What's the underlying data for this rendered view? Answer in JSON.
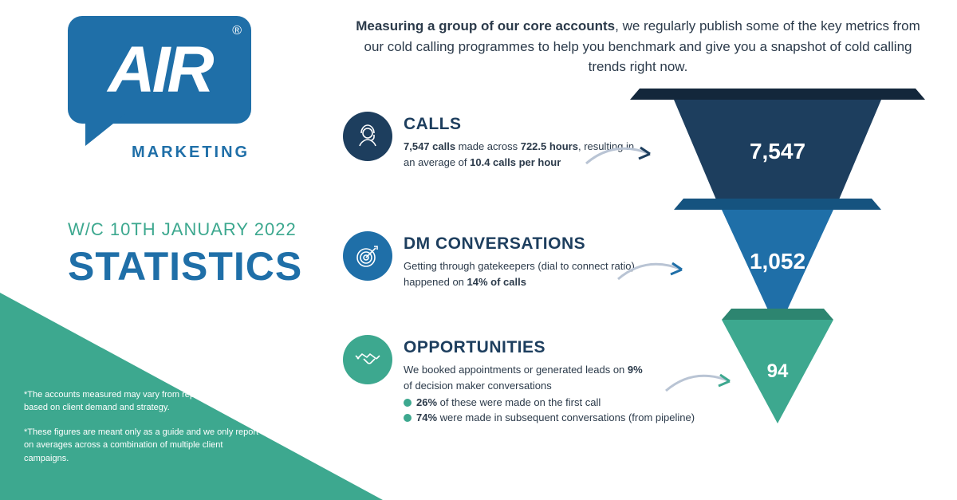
{
  "brand": {
    "logo_text": "AIR",
    "logo_sub": "MARKETING",
    "logo_reg": "®",
    "primary_color": "#1f6fa8",
    "accent_color": "#3da88f",
    "dark_navy": "#1d3e5e"
  },
  "header": {
    "date_line": "W/C 10TH JANUARY 2022",
    "title": "STATISTICS"
  },
  "intro": {
    "bold_lead": "Measuring a group of our core accounts",
    "rest": ", we regularly publish some of the key metrics from our cold calling programmes to help you benchmark and give you a snapshot of cold calling trends right now."
  },
  "metrics": {
    "calls": {
      "title": "CALLS",
      "desc_pre": "",
      "value_calls": "7,547 calls",
      "desc_mid1": " made across ",
      "value_hours": "722.5 hours",
      "desc_mid2": ", resulting in an average of ",
      "value_rate": "10.4 calls per hour",
      "icon_color": "#1d3e5e"
    },
    "dm": {
      "title": "DM CONVERSATIONS",
      "desc_pre": "Getting through gatekeepers (dial to connect ratio) happened on ",
      "value_pct": "14% of calls",
      "icon_color": "#1f6fa8"
    },
    "opp": {
      "title": "OPPORTUNITIES",
      "desc_pre": "We booked appointments or generated leads on ",
      "value_pct": "9%",
      "desc_post": " of decision maker conversations",
      "bullet1_pct": "26%",
      "bullet1_text": " of these were made on the first call",
      "bullet2_pct": "74%",
      "bullet2_text": " were made in subsequent conversations (from pipeline)",
      "icon_color": "#3da88f"
    }
  },
  "funnel": {
    "seg1": {
      "value": "7,547",
      "color": "#1d3e5e",
      "rim_color": "#13273b",
      "top_width": 370,
      "bottom_width": 260,
      "height": 130
    },
    "seg2": {
      "value": "1,052",
      "color": "#1f6fa8",
      "rim_color": "#15537f",
      "top_width": 260,
      "bottom_width": 140,
      "height": 130
    },
    "seg3": {
      "value": "94",
      "color": "#3da88f",
      "rim_color": "#2d8570",
      "top_width": 140,
      "bottom_width": 0,
      "height": 130
    }
  },
  "disclaimer": {
    "p1": "*The accounts measured may vary from report to report, based on client demand and strategy.",
    "p2": "*These figures are meant only as a guide and we only report on averages across a combination of multiple client campaigns."
  }
}
